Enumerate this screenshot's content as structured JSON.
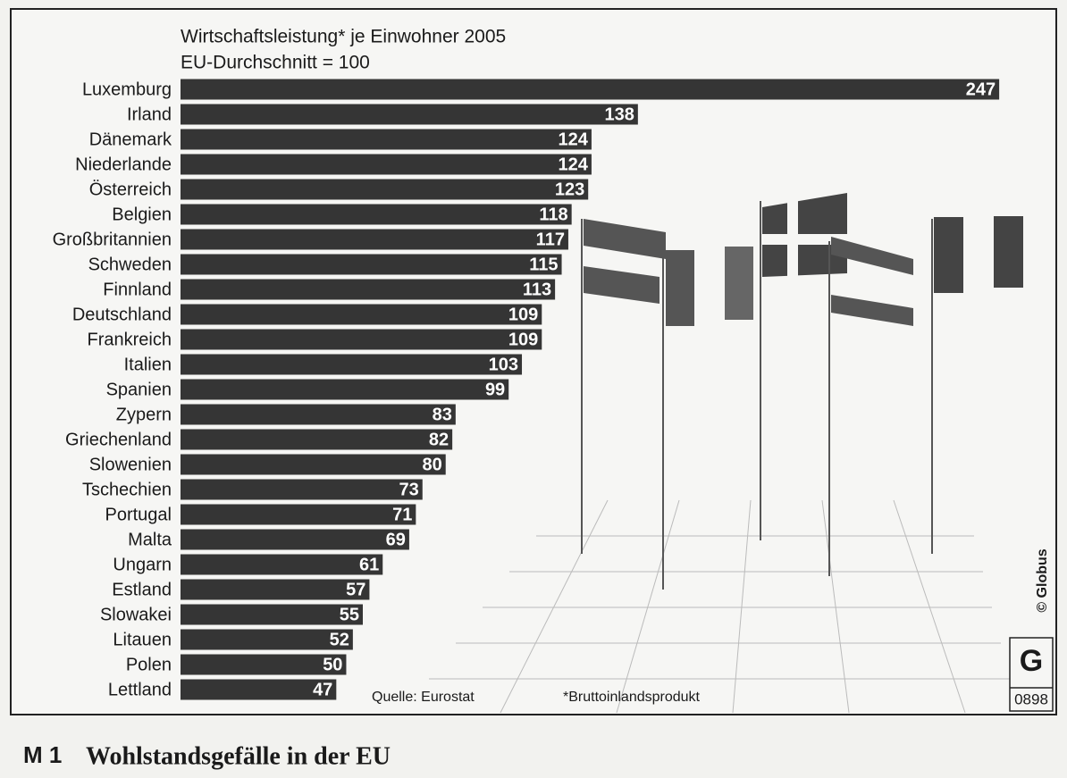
{
  "chart_data": {
    "type": "bar",
    "orientation": "horizontal",
    "title": "Wirtschaftsleistung* je Einwohner 2005",
    "subtitle": "EU-Durchschnitt = 100",
    "categories": [
      "Luxemburg",
      "Irland",
      "Dänemark",
      "Niederlande",
      "Österreich",
      "Belgien",
      "Großbritannien",
      "Schweden",
      "Finnland",
      "Deutschland",
      "Frankreich",
      "Italien",
      "Spanien",
      "Zypern",
      "Griechenland",
      "Slowenien",
      "Tschechien",
      "Portugal",
      "Malta",
      "Ungarn",
      "Estland",
      "Slowakei",
      "Litauen",
      "Polen",
      "Lettland"
    ],
    "values": [
      247,
      138,
      124,
      124,
      123,
      118,
      117,
      115,
      113,
      109,
      109,
      103,
      99,
      83,
      82,
      80,
      73,
      71,
      69,
      61,
      57,
      55,
      52,
      50,
      47
    ],
    "color": "#353535",
    "source": "Quelle: Eurostat",
    "footnote": "*Bruttoinlandsprodukt",
    "credit": "© Globus",
    "code": "0898"
  },
  "caption": {
    "label": "M 1",
    "text": "Wohlstandsgefälle in der EU"
  }
}
